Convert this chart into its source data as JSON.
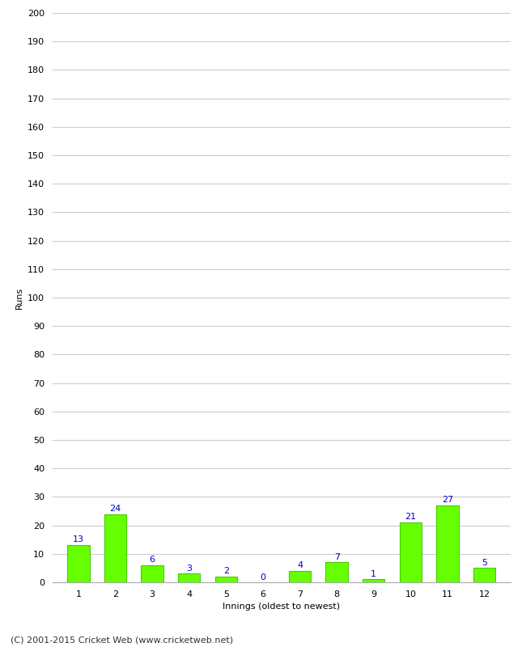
{
  "innings": [
    1,
    2,
    3,
    4,
    5,
    6,
    7,
    8,
    9,
    10,
    11,
    12
  ],
  "runs": [
    13,
    24,
    6,
    3,
    2,
    0,
    4,
    7,
    1,
    21,
    27,
    5
  ],
  "bar_color": "#66ff00",
  "bar_edge_color": "#44cc00",
  "label_color": "#0000cc",
  "xlabel": "Innings (oldest to newest)",
  "ylabel": "Runs",
  "ylim": [
    0,
    200
  ],
  "yticks": [
    0,
    10,
    20,
    30,
    40,
    50,
    60,
    70,
    80,
    90,
    100,
    110,
    120,
    130,
    140,
    150,
    160,
    170,
    180,
    190,
    200
  ],
  "footer": "(C) 2001-2015 Cricket Web (www.cricketweb.net)",
  "background_color": "#ffffff",
  "grid_color": "#cccccc",
  "label_fontsize": 8,
  "axis_fontsize": 8,
  "footer_fontsize": 8
}
